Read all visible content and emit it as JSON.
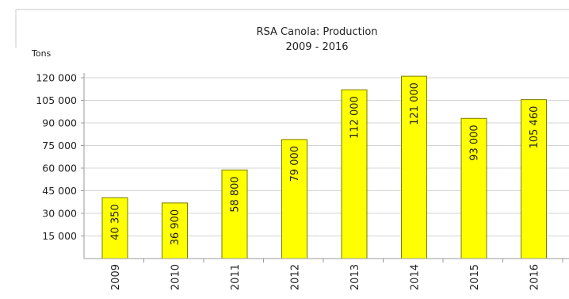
{
  "chart_data": {
    "type": "bar",
    "title": "RSA Canola: Production",
    "subtitle": "2009 - 2016",
    "ylabel": "Tons",
    "categories": [
      "2009",
      "2010",
      "2011",
      "2012",
      "2013",
      "2014",
      "2015",
      "2016"
    ],
    "values": [
      40350,
      36900,
      58800,
      79000,
      112000,
      121000,
      93000,
      105460
    ],
    "data_labels": [
      "40 350",
      "36 900",
      "58 800",
      "79 000",
      "112 000",
      "121 000",
      "93 000",
      "105 460"
    ],
    "ylim": [
      0,
      120000
    ],
    "yticks": [
      15000,
      30000,
      45000,
      60000,
      75000,
      90000,
      105000,
      120000
    ],
    "ytick_labels": [
      "15 000",
      "30 000",
      "45 000",
      "60 000",
      "75 000",
      "90 000",
      "105 000",
      "120 000"
    ],
    "grid": true,
    "colors": {
      "bar_fill": "#ffff00",
      "bar_stroke": "#7a7a00"
    }
  }
}
